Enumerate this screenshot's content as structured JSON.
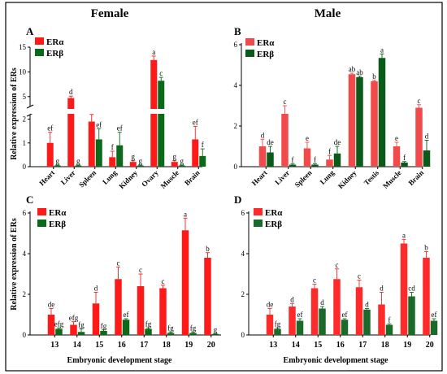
{
  "figure": {
    "col_titles": [
      "Female",
      "Male"
    ],
    "xlabel_bottom": "Embryonic development stage",
    "ylabel": "Relative expression of ERs"
  },
  "colors": {
    "era": "#ff1a1a",
    "erb": "#0a6a1a",
    "era_male_a": "#f04a4a",
    "erb_male_a": "#0a5a1a",
    "era_d": "#ff2a2a",
    "erb_d": "#1a6a2a"
  },
  "chart_data": [
    {
      "panel": "A",
      "type": "bar",
      "categories": [
        "Heart",
        "Liver",
        "Spleen",
        "Lung",
        "Kidney",
        "Ovary",
        "Muscle",
        "Brain"
      ],
      "broken_axis": true,
      "yticks_lower": [
        "0",
        "1",
        "2"
      ],
      "yticks_upper": [
        "5",
        "10",
        "15"
      ],
      "series": [
        {
          "name": "ERα",
          "values": [
            1.0,
            4.7,
            1.9,
            0.4,
            0.2,
            12.4,
            0.2,
            1.15
          ],
          "errors": [
            0.45,
            0.4,
            0.3,
            0.25,
            0.05,
            0.8,
            0.05,
            0.55
          ],
          "letters": [
            "ef",
            "d",
            "e",
            "f",
            "g",
            "a",
            "g",
            "ef"
          ]
        },
        {
          "name": "ERβ",
          "values": [
            0.05,
            0.05,
            1.15,
            0.9,
            0.05,
            8.2,
            0.05,
            0.45
          ],
          "errors": [
            0.02,
            0.02,
            0.45,
            0.55,
            0.02,
            0.7,
            0.02,
            0.3
          ],
          "letters": [
            "g",
            "g",
            "ef",
            "ef",
            "g",
            "c",
            "g",
            "f"
          ]
        }
      ]
    },
    {
      "panel": "B",
      "type": "bar",
      "categories": [
        "Heart",
        "Liver",
        "Spleen",
        "Lung",
        "Kidney",
        "Testis",
        "Muscle",
        "Brain"
      ],
      "yticks": [
        "0",
        "2",
        "4",
        "6"
      ],
      "ylim": [
        0,
        6
      ],
      "series": [
        {
          "name": "ERα",
          "values": [
            1.0,
            2.6,
            0.9,
            0.35,
            4.55,
            4.2,
            1.0,
            2.9
          ],
          "errors": [
            0.35,
            0.4,
            0.3,
            0.2,
            0.05,
            0.05,
            0.2,
            0.15
          ],
          "letters": [
            "d",
            "c",
            "e",
            "f",
            "ab",
            "b",
            "e",
            "c"
          ]
        },
        {
          "name": "ERβ",
          "values": [
            0.7,
            0.1,
            0.1,
            0.65,
            4.4,
            5.35,
            0.2,
            0.8
          ],
          "errors": [
            0.3,
            0.05,
            0.05,
            0.35,
            0.05,
            0.2,
            0.05,
            0.5
          ],
          "letters": [
            "de",
            "f",
            "f",
            "de",
            "ab",
            "a",
            "f",
            "d"
          ]
        }
      ]
    },
    {
      "panel": "C",
      "type": "bar",
      "categories": [
        "13",
        "14",
        "15",
        "16",
        "17",
        "18",
        "19",
        "20"
      ],
      "yticks": [
        "0",
        "2",
        "4",
        "6"
      ],
      "ylim": [
        0,
        6
      ],
      "series": [
        {
          "name": "ERα",
          "values": [
            1.0,
            0.5,
            1.55,
            2.75,
            2.4,
            2.3,
            5.15,
            3.8
          ],
          "errors": [
            0.3,
            0.15,
            0.55,
            0.6,
            0.6,
            0.15,
            0.6,
            0.25
          ],
          "letters": [
            "de",
            "efg",
            "d",
            "c",
            "c",
            "c",
            "a",
            "b"
          ]
        },
        {
          "name": "ERβ",
          "values": [
            0.3,
            0.15,
            0.2,
            0.75,
            0.3,
            0.1,
            0.1,
            0.05
          ],
          "errors": [
            0.05,
            0.15,
            0.05,
            0.05,
            0.05,
            0.05,
            0.05,
            0.02
          ],
          "letters": [
            "efg",
            "fg",
            "fg",
            "ef",
            "fg",
            "fg",
            "fg",
            "g"
          ]
        }
      ]
    },
    {
      "panel": "D",
      "type": "bar",
      "categories": [
        "13",
        "14",
        "15",
        "16",
        "17",
        "18",
        "19",
        "20"
      ],
      "yticks": [
        "0",
        "2",
        "4",
        "6"
      ],
      "ylim": [
        0,
        6
      ],
      "series": [
        {
          "name": "ERα",
          "values": [
            1.0,
            1.4,
            2.3,
            2.75,
            2.35,
            1.5,
            4.5,
            3.8
          ],
          "errors": [
            0.3,
            0.15,
            0.2,
            0.5,
            0.35,
            0.6,
            0.2,
            0.3
          ],
          "letters": [
            "de",
            "d",
            "c",
            "c",
            "c",
            "d",
            "a",
            "b"
          ]
        },
        {
          "name": "ERβ",
          "values": [
            0.3,
            0.7,
            1.3,
            0.75,
            1.25,
            0.5,
            1.9,
            0.7
          ],
          "errors": [
            0.05,
            0.1,
            0.1,
            0.05,
            0.05,
            0.05,
            0.2,
            0.1
          ],
          "letters": [
            "fg",
            "ef",
            "d",
            "ef",
            "d",
            "f",
            "cd",
            "ef"
          ]
        }
      ]
    }
  ]
}
